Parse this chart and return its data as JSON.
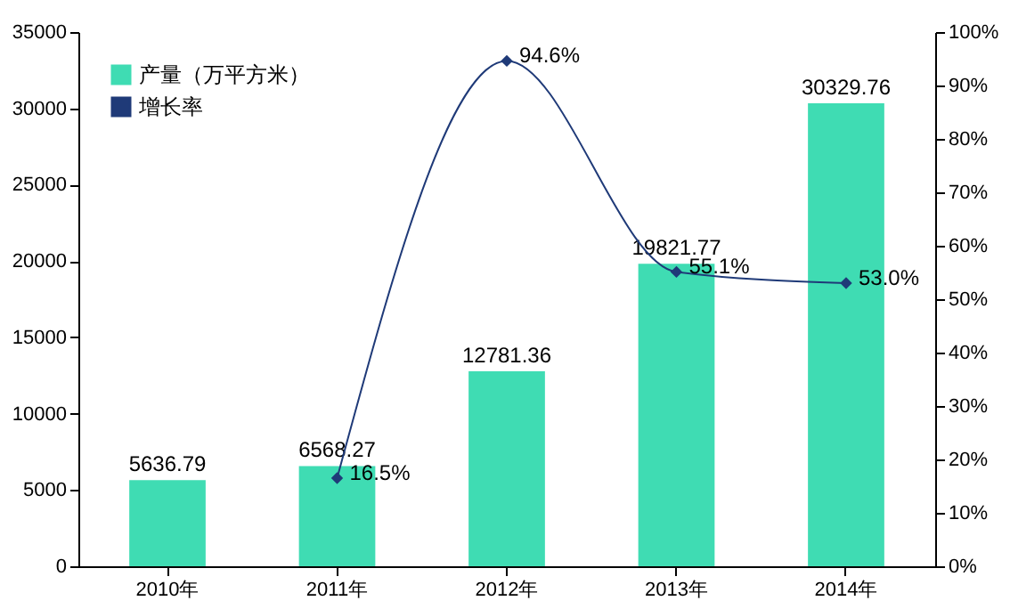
{
  "chart_data": {
    "type": "bar",
    "categories": [
      "2010年",
      "2011年",
      "2012年",
      "2013年",
      "2014年"
    ],
    "series": [
      {
        "name": "产量（万平方米）",
        "color": "#3fdcb3",
        "values": [
          5636.79,
          6568.27,
          12781.36,
          19821.77,
          30329.76
        ],
        "value_labels": [
          "5636.79",
          "6568.27",
          "12781.36",
          "19821.77",
          "30329.76"
        ]
      },
      {
        "name": "增长率",
        "type": "line",
        "axis": "y2",
        "color": "#1f3a78",
        "marker": "diamond",
        "values": [
          null,
          16.5,
          94.6,
          55.1,
          53.0
        ],
        "value_labels": [
          null,
          "16.5%",
          "94.6%",
          "55.1%",
          "53.0%"
        ]
      }
    ],
    "ylim": [
      0,
      35000
    ],
    "yticks": [
      0,
      5000,
      10000,
      15000,
      20000,
      25000,
      30000,
      35000
    ],
    "y2lim": [
      0,
      100
    ],
    "y2ticks": [
      {
        "value": 0,
        "label": "0%"
      },
      {
        "value": 10,
        "label": "10%"
      },
      {
        "value": 20,
        "label": "20%"
      },
      {
        "value": 30,
        "label": "30%"
      },
      {
        "value": 40,
        "label": "40%"
      },
      {
        "value": 50,
        "label": "50%"
      },
      {
        "value": 60,
        "label": "60%"
      },
      {
        "value": 70,
        "label": "70%"
      },
      {
        "value": 80,
        "label": "80%"
      },
      {
        "value": 90,
        "label": "90%"
      },
      {
        "value": 100,
        "label": "100%"
      }
    ],
    "legend": "top left",
    "grid": false
  }
}
